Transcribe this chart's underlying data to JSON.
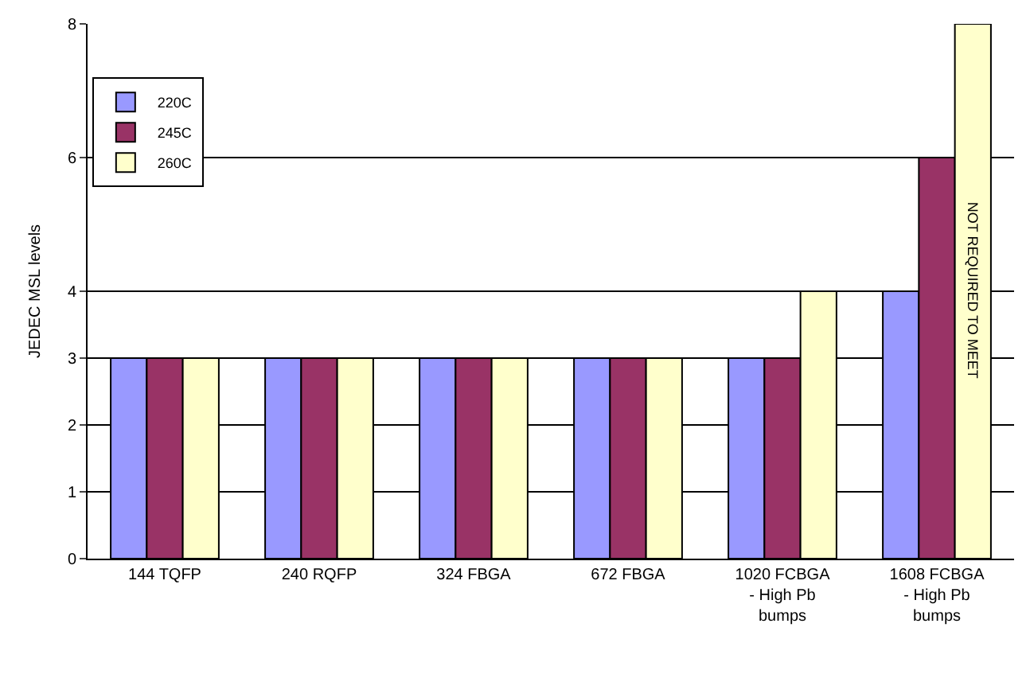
{
  "chart_data": {
    "type": "bar",
    "ylabel": "JEDEC MSL levels",
    "categories": [
      "144 TQFP",
      "240 RQFP",
      "324 FBGA",
      "672 FBGA",
      "1020 FCBGA\n- High Pb\nbumps",
      "1608 FCBGA\n- High Pb\nbumps"
    ],
    "series": [
      {
        "name": "220C",
        "color": "#9999ff",
        "values": [
          3,
          3,
          3,
          3,
          3,
          4
        ]
      },
      {
        "name": "245C",
        "color": "#993366",
        "values": [
          3,
          3,
          3,
          3,
          3,
          6
        ]
      },
      {
        "name": "260C",
        "color": "#ffffcc",
        "values": [
          3,
          3,
          3,
          3,
          4,
          8
        ]
      }
    ],
    "ylim": [
      0,
      8
    ],
    "yticks": [
      0,
      1,
      2,
      3,
      4,
      6,
      8
    ],
    "grid": "y",
    "legend": "top left",
    "annotations": [
      "NOT REQUIRED TO MEET"
    ]
  }
}
